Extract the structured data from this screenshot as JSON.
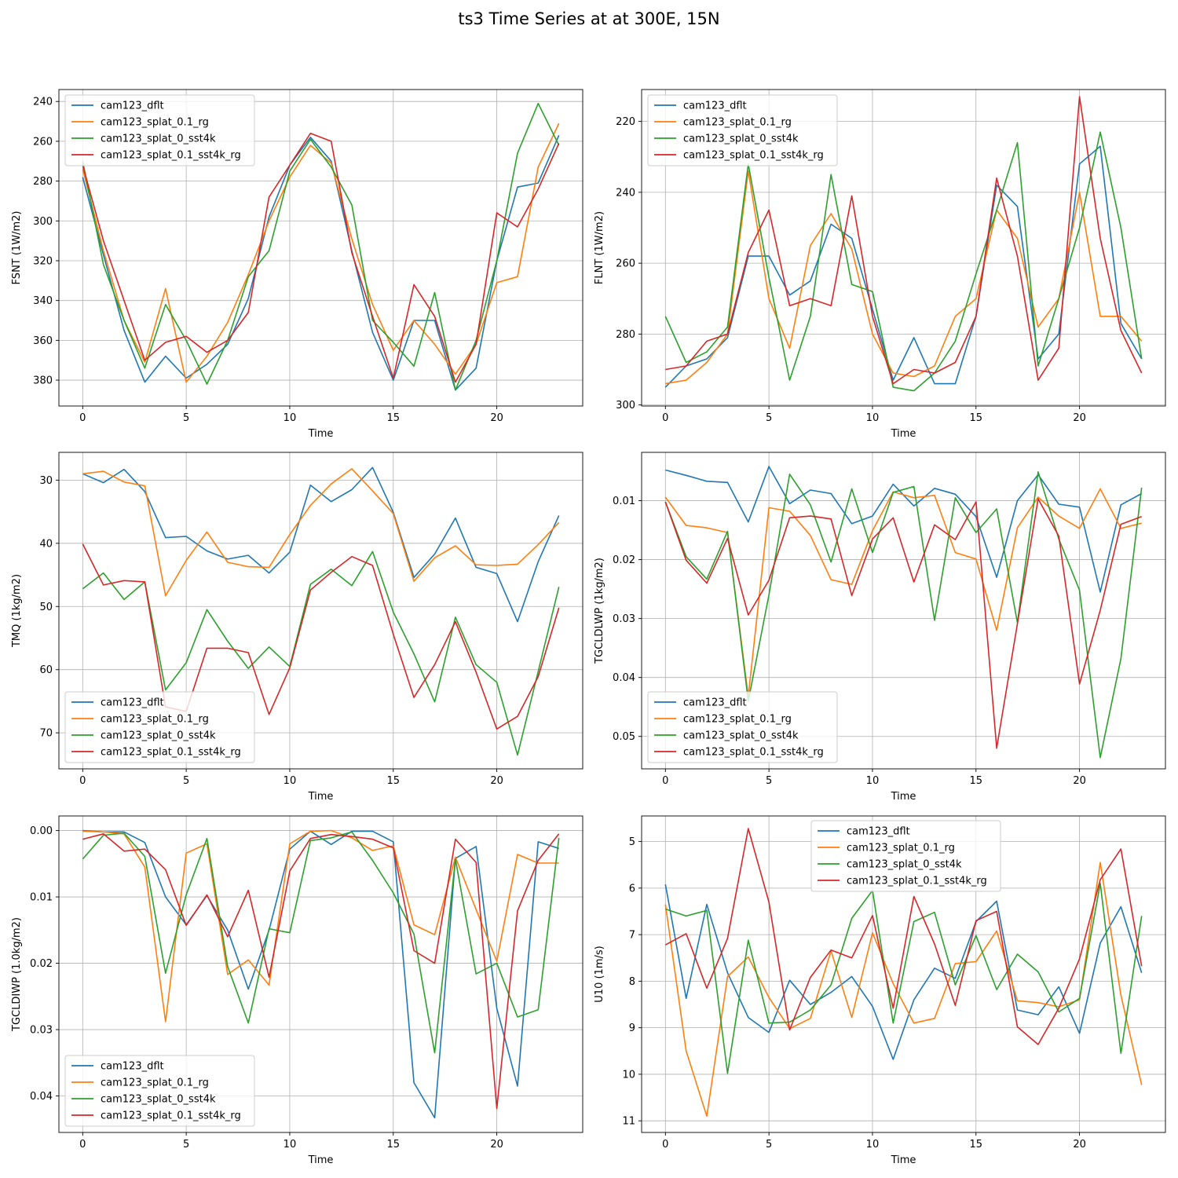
{
  "figure": {
    "title": "ts3 Time Series at at 300E, 15N"
  },
  "colors": [
    "#1f77b4",
    "#ff7f0e",
    "#2ca02c",
    "#d62728"
  ],
  "chart_data": [
    {
      "type": "line",
      "xlabel": "Time",
      "ylabel": "FSNT (1W/m2)",
      "xlim": [
        -1.15,
        24.15
      ],
      "ylim": [
        393,
        234
      ],
      "y_inverted": true,
      "xticks": [
        0,
        5,
        10,
        15,
        20
      ],
      "yticks": [
        240,
        260,
        280,
        300,
        320,
        340,
        360,
        380
      ],
      "grid": true,
      "legend": "upper-left",
      "x": [
        0,
        1,
        2,
        3,
        4,
        5,
        6,
        7,
        8,
        9,
        10,
        11,
        12,
        13,
        14,
        15,
        16,
        17,
        18,
        19,
        20,
        21,
        22,
        23
      ],
      "series": [
        {
          "name": "cam123_dflt",
          "values": [
            278,
            317,
            355,
            381,
            368,
            379,
            372,
            362,
            339,
            298,
            272,
            258,
            270,
            315,
            356,
            380,
            350,
            350,
            385,
            374,
            320,
            283,
            281,
            257
          ]
        },
        {
          "name": "cam123_splat_0.1_rg",
          "values": [
            274,
            315,
            350,
            371,
            334,
            381,
            368,
            351,
            327,
            300,
            278,
            262,
            271,
            309,
            342,
            365,
            350,
            362,
            377,
            362,
            331,
            328,
            273,
            251
          ]
        },
        {
          "name": "cam123_splat_0_sst4k",
          "values": [
            270,
            322,
            350,
            374,
            342,
            360,
            382,
            360,
            328,
            315,
            275,
            259,
            273,
            292,
            350,
            361,
            373,
            336,
            385,
            360,
            320,
            266,
            241,
            262
          ]
        },
        {
          "name": "cam123_splat_0.1_sst4k_rg",
          "values": [
            272,
            310,
            340,
            370,
            361,
            358,
            366,
            360,
            346,
            288,
            272,
            256,
            260,
            316,
            348,
            379,
            332,
            348,
            381,
            362,
            296,
            303,
            284,
            261
          ]
        }
      ]
    },
    {
      "type": "line",
      "xlabel": "Time",
      "ylabel": "FLNT (1W/m2)",
      "xlim": [
        -1.15,
        24.15
      ],
      "ylim": [
        300.3,
        211
      ],
      "y_inverted": true,
      "xticks": [
        0,
        5,
        10,
        15,
        20
      ],
      "yticks": [
        220,
        240,
        260,
        280,
        300
      ],
      "grid": true,
      "legend": "upper-left",
      "x": [
        0,
        1,
        2,
        3,
        4,
        5,
        6,
        7,
        8,
        9,
        10,
        11,
        12,
        13,
        14,
        15,
        16,
        17,
        18,
        19,
        20,
        21,
        22,
        23
      ],
      "series": [
        {
          "name": "cam123_dflt",
          "values": [
            295,
            289,
            287,
            281,
            258,
            258,
            269,
            265,
            249,
            253,
            273,
            293,
            281,
            294,
            294,
            275,
            238,
            244,
            287,
            280,
            232,
            227,
            277,
            287
          ]
        },
        {
          "name": "cam123_splat_0.1_rg",
          "values": [
            294,
            293,
            288,
            280,
            234,
            270,
            284,
            255,
            246,
            256,
            280,
            291,
            292,
            289,
            275,
            270,
            245,
            253,
            278,
            270,
            240,
            275,
            275,
            282
          ]
        },
        {
          "name": "cam123_splat_0_sst4k",
          "values": [
            275,
            288,
            285,
            278,
            232,
            264,
            293,
            275,
            235,
            266,
            268,
            295,
            296,
            291,
            282,
            263,
            245,
            226,
            289,
            270,
            250,
            223,
            250,
            287
          ]
        },
        {
          "name": "cam123_splat_0.1_sst4k_rg",
          "values": [
            290,
            289,
            282,
            280,
            257,
            245,
            272,
            270,
            272,
            241,
            275,
            294,
            290,
            291,
            288,
            275,
            236,
            258,
            293,
            284,
            213,
            253,
            279,
            291
          ]
        }
      ]
    },
    {
      "type": "line",
      "xlabel": "Time",
      "ylabel": "TMQ (1kg/m2)",
      "xlim": [
        -1.15,
        24.15
      ],
      "ylim": [
        75.7,
        25.6
      ],
      "y_inverted": true,
      "xticks": [
        0,
        5,
        10,
        15,
        20
      ],
      "yticks": [
        30,
        40,
        50,
        60,
        70
      ],
      "grid": true,
      "legend": "lower-left",
      "x": [
        0,
        1,
        2,
        3,
        4,
        5,
        6,
        7,
        8,
        9,
        10,
        11,
        12,
        13,
        14,
        15,
        16,
        17,
        18,
        19,
        20,
        21,
        22,
        23
      ],
      "series": [
        {
          "name": "cam123_dflt",
          "values": [
            29.0,
            30.4,
            28.3,
            31.8,
            39.1,
            38.9,
            41.2,
            42.5,
            41.9,
            44.7,
            41.4,
            30.8,
            33.4,
            31.5,
            28.0,
            35.1,
            45.4,
            41.7,
            36.0,
            43.8,
            44.8,
            52.4,
            42.9,
            35.6
          ]
        },
        {
          "name": "cam123_splat_0.1_rg",
          "values": [
            29.0,
            28.6,
            30.3,
            30.9,
            48.3,
            42.7,
            38.2,
            43.0,
            43.7,
            43.8,
            38.6,
            34.0,
            30.6,
            28.2,
            31.7,
            35.3,
            46.0,
            42.3,
            40.4,
            43.4,
            43.5,
            43.3,
            40.2,
            36.7
          ]
        },
        {
          "name": "cam123_splat_0_sst4k",
          "values": [
            47.2,
            44.7,
            48.9,
            46.1,
            63.2,
            58.9,
            50.5,
            55.5,
            59.8,
            56.4,
            59.5,
            46.5,
            44.1,
            46.7,
            41.3,
            50.9,
            57.5,
            65.1,
            51.7,
            59.2,
            62.0,
            73.5,
            60.3,
            46.9
          ]
        },
        {
          "name": "cam123_splat_0.1_sst4k_rg",
          "values": [
            40.1,
            46.6,
            45.9,
            46.1,
            65.9,
            66.6,
            56.6,
            56.6,
            57.3,
            67.1,
            59.7,
            47.4,
            44.6,
            42.1,
            43.5,
            54.4,
            64.4,
            59.2,
            52.4,
            60.4,
            69.4,
            67.4,
            61.1,
            50.2
          ]
        }
      ]
    },
    {
      "type": "line",
      "xlabel": "Time",
      "ylabel": "TGCLDLWP (1kg/m2)",
      "xlim": [
        -1.15,
        24.15
      ],
      "ylim": [
        0.0555,
        0.0018
      ],
      "y_inverted": true,
      "xticks": [
        0,
        5,
        10,
        15,
        20
      ],
      "yticks": [
        0.01,
        0.02,
        0.03,
        0.04,
        0.05
      ],
      "grid": true,
      "legend": "lower-left",
      "x": [
        0,
        1,
        2,
        3,
        4,
        5,
        6,
        7,
        8,
        9,
        10,
        11,
        12,
        13,
        14,
        15,
        16,
        17,
        18,
        19,
        20,
        21,
        22,
        23
      ],
      "series": [
        {
          "name": "cam123_dflt",
          "values": [
            0.0048,
            0.0057,
            0.0067,
            0.0069,
            0.0136,
            0.0042,
            0.0105,
            0.0082,
            0.0088,
            0.0139,
            0.0126,
            0.0072,
            0.0109,
            0.0079,
            0.0089,
            0.0127,
            0.023,
            0.01,
            0.0056,
            0.0106,
            0.0111,
            0.0255,
            0.0107,
            0.0088
          ]
        },
        {
          "name": "cam123_splat_0.1_rg",
          "values": [
            0.0094,
            0.0142,
            0.0146,
            0.0154,
            0.0432,
            0.0112,
            0.0118,
            0.0159,
            0.0234,
            0.0242,
            0.0151,
            0.0085,
            0.0095,
            0.0091,
            0.0188,
            0.0199,
            0.032,
            0.0146,
            0.0094,
            0.0126,
            0.0147,
            0.008,
            0.0147,
            0.0138
          ]
        },
        {
          "name": "cam123_splat_0_sst4k",
          "values": [
            0.0102,
            0.0195,
            0.0233,
            0.0152,
            0.044,
            0.026,
            0.0055,
            0.0107,
            0.0204,
            0.008,
            0.0188,
            0.0086,
            0.0076,
            0.0303,
            0.0095,
            0.0154,
            0.0114,
            0.0307,
            0.0051,
            0.0165,
            0.0252,
            0.0536,
            0.0368,
            0.0078
          ]
        },
        {
          "name": "cam123_splat_0.1_sst4k_rg",
          "values": [
            0.0102,
            0.0201,
            0.024,
            0.0164,
            0.0294,
            0.0235,
            0.0129,
            0.0126,
            0.0131,
            0.0261,
            0.0165,
            0.0129,
            0.0238,
            0.0141,
            0.0166,
            0.0102,
            0.052,
            0.0309,
            0.0097,
            0.016,
            0.0411,
            0.0286,
            0.014,
            0.0127
          ]
        }
      ]
    },
    {
      "type": "line",
      "xlabel": "Time",
      "ylabel": "TGCLDIWP (1.0kg/m2)",
      "xlim": [
        -1.15,
        24.15
      ],
      "ylim": [
        0.0455,
        -0.0022
      ],
      "y_inverted": true,
      "xticks": [
        0,
        5,
        10,
        15,
        20
      ],
      "yticks": [
        0.0,
        0.01,
        0.02,
        0.03,
        0.04
      ],
      "ytick_labels": [
        "0.00",
        "0.01",
        "0.02",
        "0.03",
        "0.04"
      ],
      "grid": true,
      "legend": "lower-left",
      "x": [
        0,
        1,
        2,
        3,
        4,
        5,
        6,
        7,
        8,
        9,
        10,
        11,
        12,
        13,
        14,
        15,
        16,
        17,
        18,
        19,
        20,
        21,
        22,
        23
      ],
      "series": [
        {
          "name": "cam123_dflt",
          "values": [
            0.0,
            0.0002,
            0.0002,
            0.0018,
            0.01,
            0.0142,
            0.0098,
            0.015,
            0.0239,
            0.015,
            0.0028,
            0.0001,
            0.0021,
            0.0001,
            0.0001,
            0.0017,
            0.038,
            0.0433,
            0.0042,
            0.0024,
            0.0268,
            0.0385,
            0.0017,
            0.0027
          ]
        },
        {
          "name": "cam123_splat_0.1_rg",
          "values": [
            0.0001,
            0.0002,
            0.0005,
            0.0055,
            0.0288,
            0.0034,
            0.002,
            0.0217,
            0.0195,
            0.0233,
            0.002,
            0.0001,
            0.0,
            0.0011,
            0.003,
            0.0023,
            0.0142,
            0.0157,
            0.004,
            0.0119,
            0.0197,
            0.0036,
            0.0049,
            0.0049
          ]
        },
        {
          "name": "cam123_splat_0_sst4k",
          "values": [
            0.0043,
            0.0007,
            0.0004,
            0.0039,
            0.0215,
            0.0097,
            0.0012,
            0.0205,
            0.029,
            0.0148,
            0.0154,
            0.0015,
            0.0011,
            0.0002,
            0.0045,
            0.0094,
            0.0156,
            0.0335,
            0.0043,
            0.0216,
            0.02,
            0.0281,
            0.027,
            0.0011
          ]
        },
        {
          "name": "cam123_splat_0.1_sst4k_rg",
          "values": [
            0.0013,
            0.0005,
            0.0031,
            0.0028,
            0.0059,
            0.0143,
            0.0097,
            0.016,
            0.009,
            0.0221,
            0.0061,
            0.0012,
            0.0006,
            0.0009,
            0.0013,
            0.0026,
            0.0181,
            0.02,
            0.0013,
            0.0048,
            0.0419,
            0.0121,
            0.0045,
            0.0005
          ]
        }
      ]
    },
    {
      "type": "line",
      "xlabel": "Time",
      "ylabel": "U10 (1m/s)",
      "xlim": [
        -1.15,
        24.15
      ],
      "ylim": [
        11.25,
        4.45
      ],
      "y_inverted": true,
      "xticks": [
        0,
        5,
        10,
        15,
        20
      ],
      "yticks": [
        5,
        6,
        7,
        8,
        9,
        10,
        11
      ],
      "grid": true,
      "legend": "upper-center",
      "x": [
        0,
        1,
        2,
        3,
        4,
        5,
        6,
        7,
        8,
        9,
        10,
        11,
        12,
        13,
        14,
        15,
        16,
        17,
        18,
        19,
        20,
        21,
        22,
        23
      ],
      "series": [
        {
          "name": "cam123_dflt",
          "values": [
            5.92,
            8.37,
            6.35,
            7.82,
            8.78,
            9.1,
            7.98,
            8.5,
            8.24,
            7.9,
            8.54,
            9.68,
            8.4,
            7.72,
            7.94,
            6.72,
            6.28,
            8.62,
            8.72,
            8.12,
            9.12,
            7.18,
            6.4,
            7.82
          ]
        },
        {
          "name": "cam123_splat_0.1_rg",
          "values": [
            6.35,
            9.5,
            10.9,
            7.9,
            7.48,
            8.35,
            9.02,
            8.8,
            7.35,
            8.78,
            6.96,
            8.05,
            8.9,
            8.8,
            7.62,
            7.58,
            6.92,
            8.42,
            8.46,
            8.55,
            8.4,
            5.45,
            8.3,
            10.23
          ]
        },
        {
          "name": "cam123_splat_0_sst4k",
          "values": [
            6.45,
            6.6,
            6.48,
            9.98,
            7.12,
            8.9,
            8.88,
            8.62,
            8.08,
            6.65,
            6.05,
            8.9,
            6.72,
            6.52,
            8.08,
            7.02,
            8.18,
            7.42,
            7.8,
            8.66,
            8.37,
            5.9,
            9.55,
            6.6
          ]
        },
        {
          "name": "cam123_splat_0.1_sst4k_rg",
          "values": [
            7.22,
            6.98,
            8.15,
            7.08,
            4.72,
            6.3,
            9.05,
            7.92,
            7.33,
            7.5,
            6.59,
            8.58,
            6.18,
            7.2,
            8.52,
            6.7,
            6.5,
            8.98,
            9.36,
            8.58,
            7.52,
            5.82,
            5.16,
            7.68
          ]
        }
      ]
    }
  ]
}
